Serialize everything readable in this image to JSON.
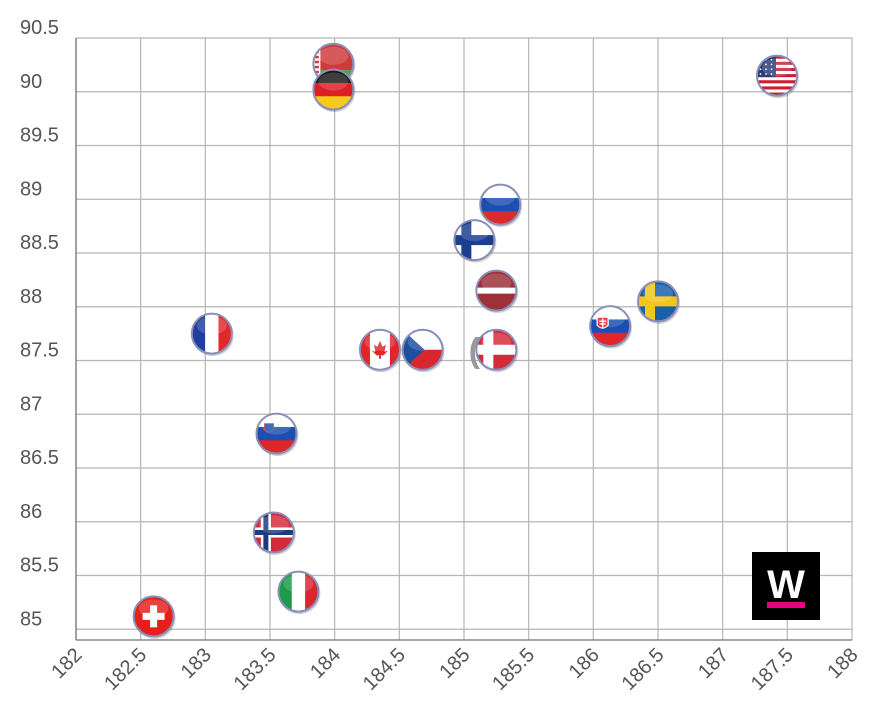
{
  "chart_data": {
    "type": "scatter",
    "title": "",
    "xlabel": "",
    "ylabel": "",
    "xlim": [
      182,
      188
    ],
    "ylim": [
      84.9,
      90.5
    ],
    "grid": true,
    "x_ticks": [
      182,
      182.5,
      183,
      183.5,
      184,
      184.5,
      185,
      185.5,
      186,
      186.5,
      187,
      187.5,
      188
    ],
    "y_ticks": [
      85,
      85.5,
      86,
      86.5,
      87,
      87.5,
      88,
      88.5,
      89,
      89.5,
      90,
      90.5
    ],
    "points": [
      {
        "country": "Switzerland",
        "flag": "flag-switzerland",
        "x": 182.6,
        "y": 85.12
      },
      {
        "country": "France",
        "flag": "flag-france",
        "x": 183.05,
        "y": 87.75
      },
      {
        "country": "Slovenia",
        "flag": "flag-slovenia",
        "x": 183.55,
        "y": 86.82
      },
      {
        "country": "Norway",
        "flag": "flag-norway",
        "x": 183.53,
        "y": 85.9
      },
      {
        "country": "Italy",
        "flag": "flag-italy",
        "x": 183.72,
        "y": 85.35
      },
      {
        "country": "Belarus",
        "flag": "flag-belarus",
        "x": 183.99,
        "y": 90.26
      },
      {
        "country": "Germany",
        "flag": "flag-germany",
        "x": 183.99,
        "y": 90.02
      },
      {
        "country": "Canada",
        "flag": "flag-canada",
        "x": 184.35,
        "y": 87.6
      },
      {
        "country": "Czech Republic",
        "flag": "flag-czech",
        "x": 184.68,
        "y": 87.6
      },
      {
        "country": "Denmark",
        "flag": "flag-denmark",
        "x": 185.25,
        "y": 87.6
      },
      {
        "country": "Latvia",
        "flag": "flag-latvia",
        "x": 185.25,
        "y": 88.15
      },
      {
        "country": "Finland",
        "flag": "flag-finland",
        "x": 185.08,
        "y": 88.62
      },
      {
        "country": "Russia",
        "flag": "flag-russia",
        "x": 185.28,
        "y": 88.95
      },
      {
        "country": "Slovakia",
        "flag": "flag-slovakia",
        "x": 186.13,
        "y": 87.82
      },
      {
        "country": "Sweden",
        "flag": "flag-sweden",
        "x": 186.5,
        "y": 88.05
      },
      {
        "country": "USA",
        "flag": "flag-usa",
        "x": 187.42,
        "y": 90.15
      }
    ],
    "annotation": {
      "text": "(=)",
      "x": 185.2,
      "y": 87.6
    }
  },
  "colors": {
    "grid": "#b5b5b5",
    "axis": "#888888",
    "tick_text": "#555555",
    "flag_border": "#8a8fb8",
    "logo_bg": "#000000",
    "logo_fg": "#ffffff",
    "logo_accent": "#e6007e"
  },
  "logo": {
    "text": "W",
    "icon": "w-logo-icon"
  }
}
